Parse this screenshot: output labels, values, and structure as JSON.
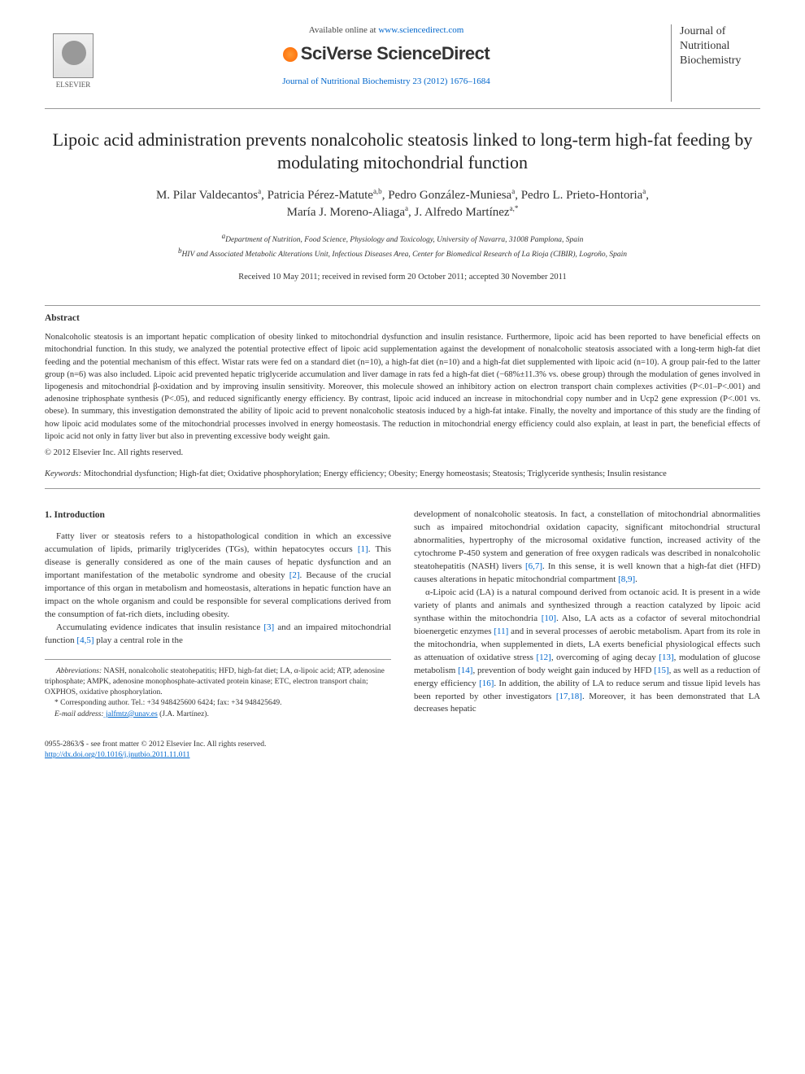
{
  "header": {
    "available_text": "Available online at ",
    "available_url": "www.sciencedirect.com",
    "publisher_platform": "SciVerse ScienceDirect",
    "elsevier_label": "ELSEVIER",
    "journal_ref": "Journal of Nutritional Biochemistry 23 (2012) 1676–1684",
    "journal_cover_lines": [
      "Journal of",
      "Nutritional",
      "Biochemistry"
    ]
  },
  "article": {
    "title": "Lipoic acid administration prevents nonalcoholic steatosis linked to long-term high-fat feeding by modulating mitochondrial function",
    "authors_html": "M. Pilar Valdecantos",
    "author_list": [
      {
        "name": "M. Pilar Valdecantos",
        "aff": "a"
      },
      {
        "name": "Patricia Pérez-Matute",
        "aff": "a,b"
      },
      {
        "name": "Pedro González-Muniesa",
        "aff": "a"
      },
      {
        "name": "Pedro L. Prieto-Hontoria",
        "aff": "a"
      },
      {
        "name": "María J. Moreno-Aliaga",
        "aff": "a"
      },
      {
        "name": "J. Alfredo Martínez",
        "aff": "a,*"
      }
    ],
    "affiliations": {
      "a": "Department of Nutrition, Food Science, Physiology and Toxicology, University of Navarra, 31008 Pamplona, Spain",
      "b": "HIV and Associated Metabolic Alterations Unit, Infectious Diseases Area, Center for Biomedical Research of La Rioja (CIBIR), Logroño, Spain"
    },
    "dates": "Received 10 May 2011; received in revised form 20 October 2011; accepted 30 November 2011"
  },
  "abstract": {
    "heading": "Abstract",
    "text": "Nonalcoholic steatosis is an important hepatic complication of obesity linked to mitochondrial dysfunction and insulin resistance. Furthermore, lipoic acid has been reported to have beneficial effects on mitochondrial function. In this study, we analyzed the potential protective effect of lipoic acid supplementation against the development of nonalcoholic steatosis associated with a long-term high-fat diet feeding and the potential mechanism of this effect. Wistar rats were fed on a standard diet (n=10), a high-fat diet (n=10) and a high-fat diet supplemented with lipoic acid (n=10). A group pair-fed to the latter group (n=6) was also included. Lipoic acid prevented hepatic triglyceride accumulation and liver damage in rats fed a high-fat diet (−68%±11.3% vs. obese group) through the modulation of genes involved in lipogenesis and mitochondrial β-oxidation and by improving insulin sensitivity. Moreover, this molecule showed an inhibitory action on electron transport chain complexes activities (P<.01–P<.001) and adenosine triphosphate synthesis (P<.05), and reduced significantly energy efficiency. By contrast, lipoic acid induced an increase in mitochondrial copy number and in Ucp2 gene expression (P<.001 vs. obese). In summary, this investigation demonstrated the ability of lipoic acid to prevent nonalcoholic steatosis induced by a high-fat intake. Finally, the novelty and importance of this study are the finding of how lipoic acid modulates some of the mitochondrial processes involved in energy homeostasis. The reduction in mitochondrial energy efficiency could also explain, at least in part, the beneficial effects of lipoic acid not only in fatty liver but also in preventing excessive body weight gain.",
    "copyright": "© 2012 Elsevier Inc. All rights reserved."
  },
  "keywords": {
    "label": "Keywords:",
    "text": " Mitochondrial dysfunction; High-fat diet; Oxidative phosphorylation; Energy efficiency; Obesity; Energy homeostasis; Steatosis; Triglyceride synthesis; Insulin resistance"
  },
  "intro": {
    "heading": "1. Introduction",
    "p1": "Fatty liver or steatosis refers to a histopathological condition in which an excessive accumulation of lipids, primarily triglycerides (TGs), within hepatocytes occurs [1]. This disease is generally considered as one of the main causes of hepatic dysfunction and an important manifestation of the metabolic syndrome and obesity [2]. Because of the crucial importance of this organ in metabolism and homeostasis, alterations in hepatic function have an impact on the whole organism and could be responsible for several complications derived from the consumption of fat-rich diets, including obesity.",
    "p2": "Accumulating evidence indicates that insulin resistance [3] and an impaired mitochondrial function [4,5] play a central role in the",
    "p3": "development of nonalcoholic steatosis. In fact, a constellation of mitochondrial abnormalities such as impaired mitochondrial oxidation capacity, significant mitochondrial structural abnormalities, hypertrophy of the microsomal oxidative function, increased activity of the cytochrome P-450 system and generation of free oxygen radicals was described in nonalcoholic steatohepatitis (NASH) livers [6,7]. In this sense, it is well known that a high-fat diet (HFD) causes alterations in hepatic mitochondrial compartment [8,9].",
    "p4": "α-Lipoic acid (LA) is a natural compound derived from octanoic acid. It is present in a wide variety of plants and animals and synthesized through a reaction catalyzed by lipoic acid synthase within the mitochondria [10]. Also, LA acts as a cofactor of several mitochondrial bioenergetic enzymes [11] and in several processes of aerobic metabolism. Apart from its role in the mitochondria, when supplemented in diets, LA exerts beneficial physiological effects such as attenuation of oxidative stress [12], overcoming of aging decay [13], modulation of glucose metabolism [14], prevention of body weight gain induced by HFD [15], as well as a reduction of energy efficiency [16]. In addition, the ability of LA to reduce serum and tissue lipid levels has been reported by other investigators [17,18]. Moreover, it has been demonstrated that LA decreases hepatic"
  },
  "footnotes": {
    "abbrev_label": "Abbreviations:",
    "abbrev_text": " NASH, nonalcoholic steatohepatitis; HFD, high-fat diet; LA, α-lipoic acid; ATP, adenosine triphosphate; AMPK, adenosine monophosphate-activated protein kinase; ETC, electron transport chain; OXPHOS, oxidative phosphorylation.",
    "corr_label": "* Corresponding author.",
    "corr_text": " Tel.: +34 948425600 6424; fax: +34 948425649.",
    "email_label": "E-mail address:",
    "email": " jalfmtz@unav.es",
    "email_who": " (J.A. Martínez)."
  },
  "footer": {
    "issn_line": "0955-2863/$ - see front matter © 2012 Elsevier Inc. All rights reserved.",
    "doi": "http://dx.doi.org/10.1016/j.jnutbio.2011.11.011"
  },
  "colors": {
    "link": "#0066cc",
    "text": "#333333",
    "rule": "#999999"
  }
}
